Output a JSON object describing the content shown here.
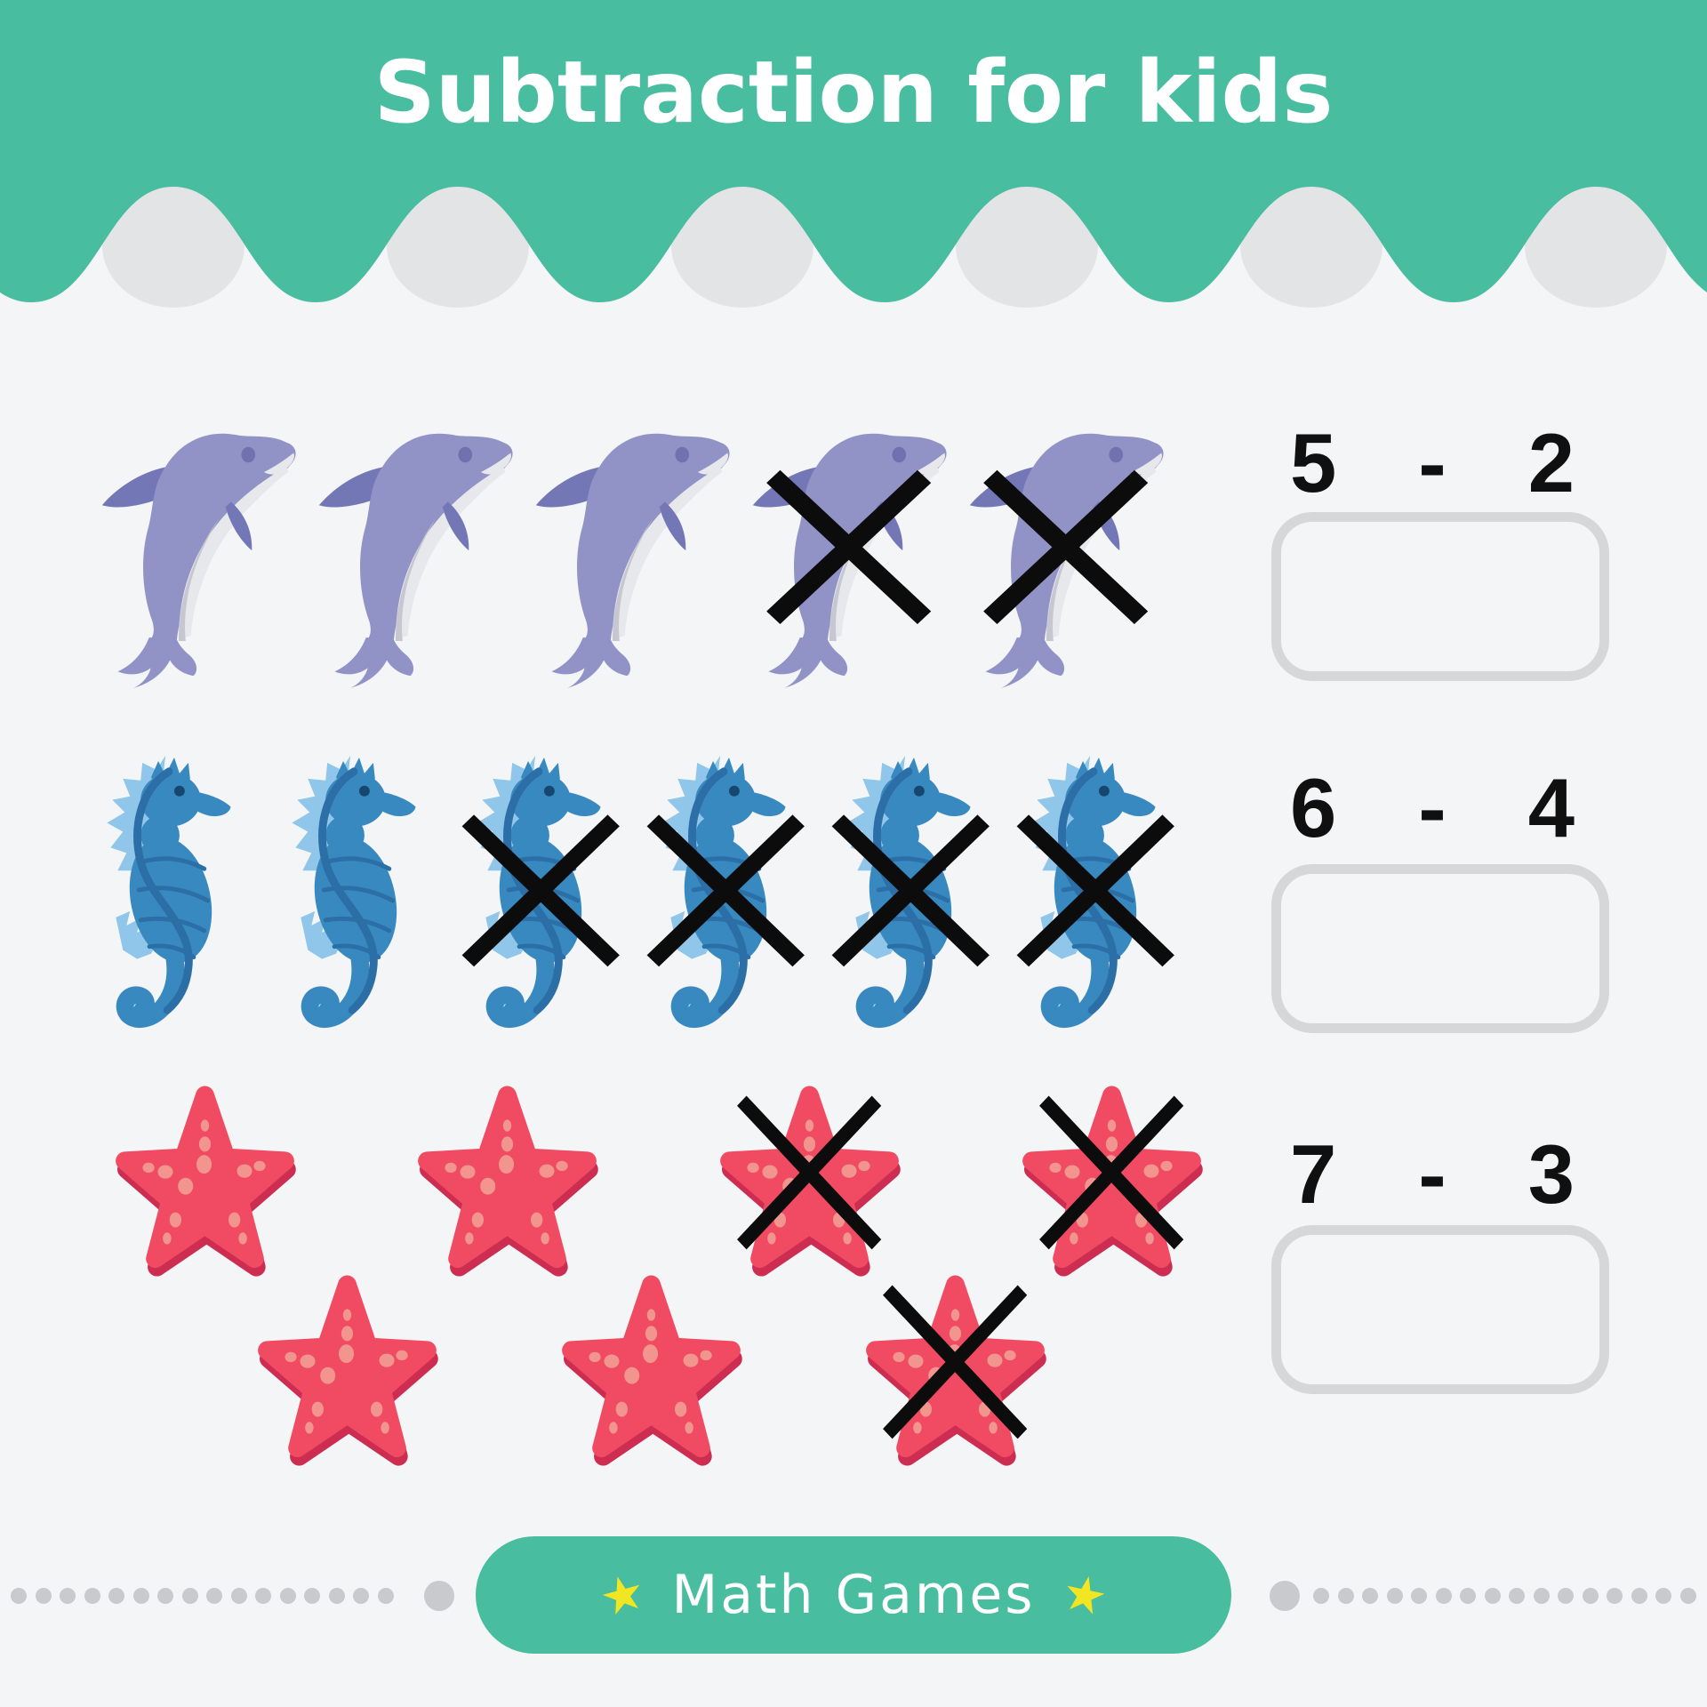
{
  "title": "Subtraction for kids",
  "problems": [
    {
      "animal": "dolphin",
      "minuend": 5,
      "subtrahend": 2,
      "equation": "5 - 2",
      "answer": "",
      "rows": [
        [
          0,
          0,
          0,
          1,
          1
        ]
      ]
    },
    {
      "animal": "seahorse",
      "minuend": 6,
      "subtrahend": 4,
      "equation": "6 - 4",
      "answer": "",
      "rows": [
        [
          0,
          0,
          1,
          1,
          1,
          1
        ]
      ]
    },
    {
      "animal": "starfish",
      "minuend": 7,
      "subtrahend": 3,
      "equation": "7 - 3",
      "answer": "",
      "rows": [
        [
          0,
          0,
          1,
          1
        ],
        [
          0,
          0,
          1
        ]
      ]
    }
  ],
  "footer": {
    "badge": "Math Games",
    "star": "★"
  },
  "colors": {
    "teal": "#49BD9F",
    "background": "#F4F5F6",
    "wave_bump": "#E3E4E6",
    "box_border": "#D6D7D9",
    "equation_text": "#101010",
    "title_text": "#FFFFFF",
    "badge_text": "#FFFFFF",
    "star_yellow": "#F2E522",
    "dot_gray": "#C9CACD",
    "x_mark": "#0C0C0C",
    "dolphin_body": "#9193C7",
    "dolphin_dark": "#7477B5",
    "dolphin_belly": "#E7E8EC",
    "dolphin_belly_shade": "#C6C7D1",
    "dolphin_eye": "#6F72AE",
    "seahorse_body": "#3989C1",
    "seahorse_dark": "#2C6FA6",
    "seahorse_light": "#8FC6EA",
    "seahorse_eye": "#16486E",
    "starfish_body": "#F04B62",
    "starfish_shadow": "#CC2D51",
    "starfish_spot": "#F2958E"
  },
  "decor": {
    "left_small_dots": 16,
    "right_small_dots": 16
  }
}
